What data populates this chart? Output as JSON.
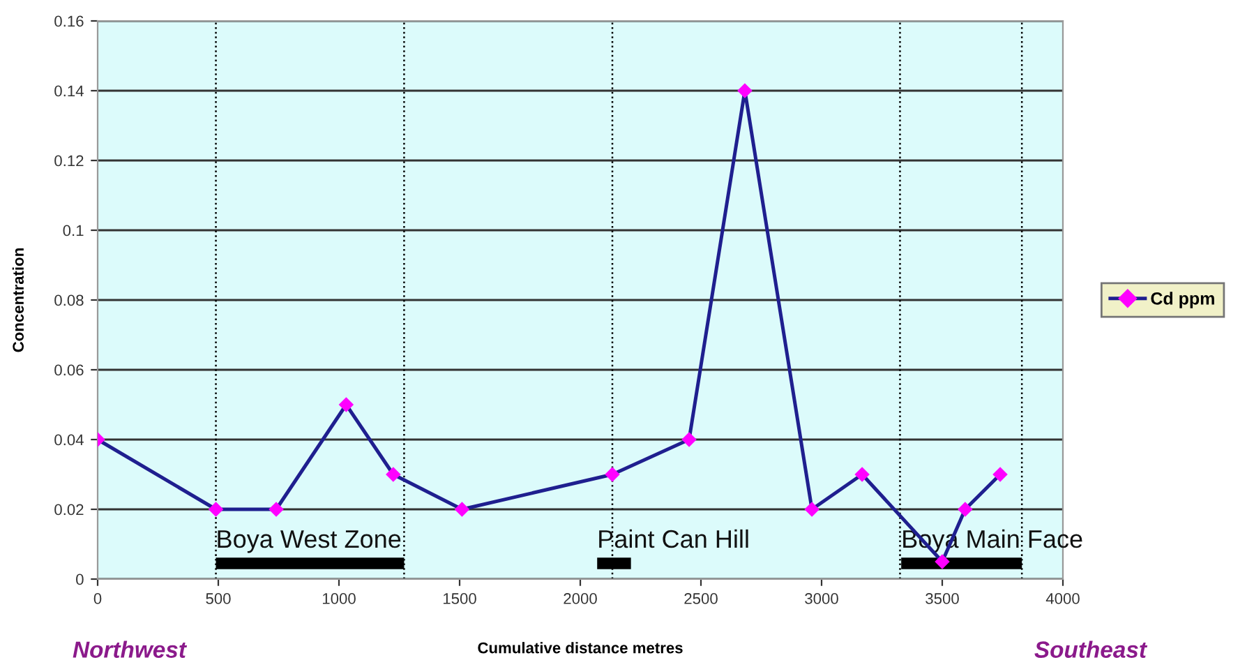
{
  "chart_data": {
    "type": "line",
    "xlabel": "Cumulative distance metres",
    "ylabel": "Concentration",
    "series": [
      {
        "name": "Cd ppm",
        "color": "#1f1f8f",
        "colors": [
          "#ff00ff",
          "#ff00ff",
          "#ff00ff",
          "#ff00ff",
          "#ff00ff",
          "#ff00ff",
          "#ff00ff",
          "#ff00ff",
          "#ff00ff",
          "#ff00ff",
          "#ff00ff",
          "#ff00ff",
          "#ff00ff",
          "#ff00ff"
        ],
        "x": [
          0,
          490,
          740,
          1030,
          1225,
          1510,
          2133,
          2451,
          2682,
          2960,
          3168,
          3500,
          3595,
          3740
        ],
        "values": [
          0.04,
          0.02,
          0.02,
          0.05,
          0.03,
          0.02,
          0.03,
          0.04,
          0.14,
          0.02,
          0.03,
          0.005,
          0.02,
          0.03
        ]
      },
      {
        "color": "#000000",
        "marker": "none",
        "x": [
          490,
          1270
        ],
        "values": [
          0.0045,
          0.0045
        ]
      },
      {
        "color": "#000000",
        "marker": "none",
        "x": [
          2070,
          2210
        ],
        "values": [
          0.0045,
          0.0045
        ]
      },
      {
        "color": "#000000",
        "marker": "none",
        "x": [
          3330,
          3830
        ],
        "values": [
          0.0045,
          0.0045
        ]
      }
    ],
    "xlim": [
      0,
      4000
    ],
    "xticks": [
      0,
      500,
      1000,
      1500,
      2000,
      2500,
      3000,
      3500,
      4000
    ],
    "ylim": [
      0,
      0.16
    ],
    "yticks": [
      0,
      0.02,
      0.04,
      0.06,
      0.08,
      0.1,
      0.12,
      0.14,
      0.16
    ],
    "grid": "y",
    "legend": "right",
    "marker": "diamond",
    "line_style": "solid",
    "ref_lines": [
      {
        "axis": "x",
        "value": 490,
        "line_style": "dotted",
        "color": "#000000"
      },
      {
        "axis": "x",
        "value": 1270,
        "line_style": "dotted",
        "color": "#000000"
      },
      {
        "axis": "x",
        "value": 2133,
        "line_style": "dotted",
        "color": "#000000"
      },
      {
        "axis": "x",
        "value": 3325,
        "line_style": "dotted",
        "color": "#000000"
      },
      {
        "axis": "x",
        "value": 3830,
        "line_style": "dotted",
        "color": "#000000"
      }
    ],
    "annotations": [
      {
        "text": "Boya West Zone",
        "x": 490,
        "y": 0.0075
      },
      {
        "text": "Paint Can Hill",
        "x": 2070,
        "y": 0.0075
      },
      {
        "text": "Boya Main Face",
        "x": 3330,
        "y": 0.0075
      },
      "Northwest",
      "Southeast"
    ]
  }
}
